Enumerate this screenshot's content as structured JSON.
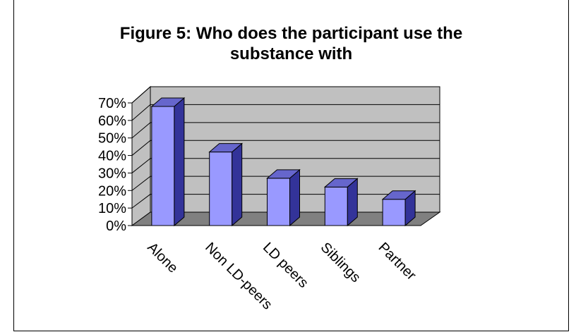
{
  "chart_data": {
    "type": "bar",
    "title_line1": "Figure 5: Who does the participant use the",
    "title_line2": "substance with",
    "categories": [
      "Alone",
      "Non LD-peers",
      "LD peers",
      "Siblings",
      "Partner"
    ],
    "values": [
      68,
      42,
      27,
      22,
      15
    ],
    "ylim": [
      0,
      70
    ],
    "ytick_labels": [
      "0%",
      "10%",
      "20%",
      "30%",
      "40%",
      "50%",
      "60%",
      "70%"
    ],
    "grid": true,
    "legend": "none",
    "colors": {
      "bar_front": "#9999ff",
      "bar_side": "#333399",
      "bar_top": "#6666cc",
      "wall": "#c0c0c0",
      "floor": "#808080",
      "grid": "#000000"
    }
  }
}
